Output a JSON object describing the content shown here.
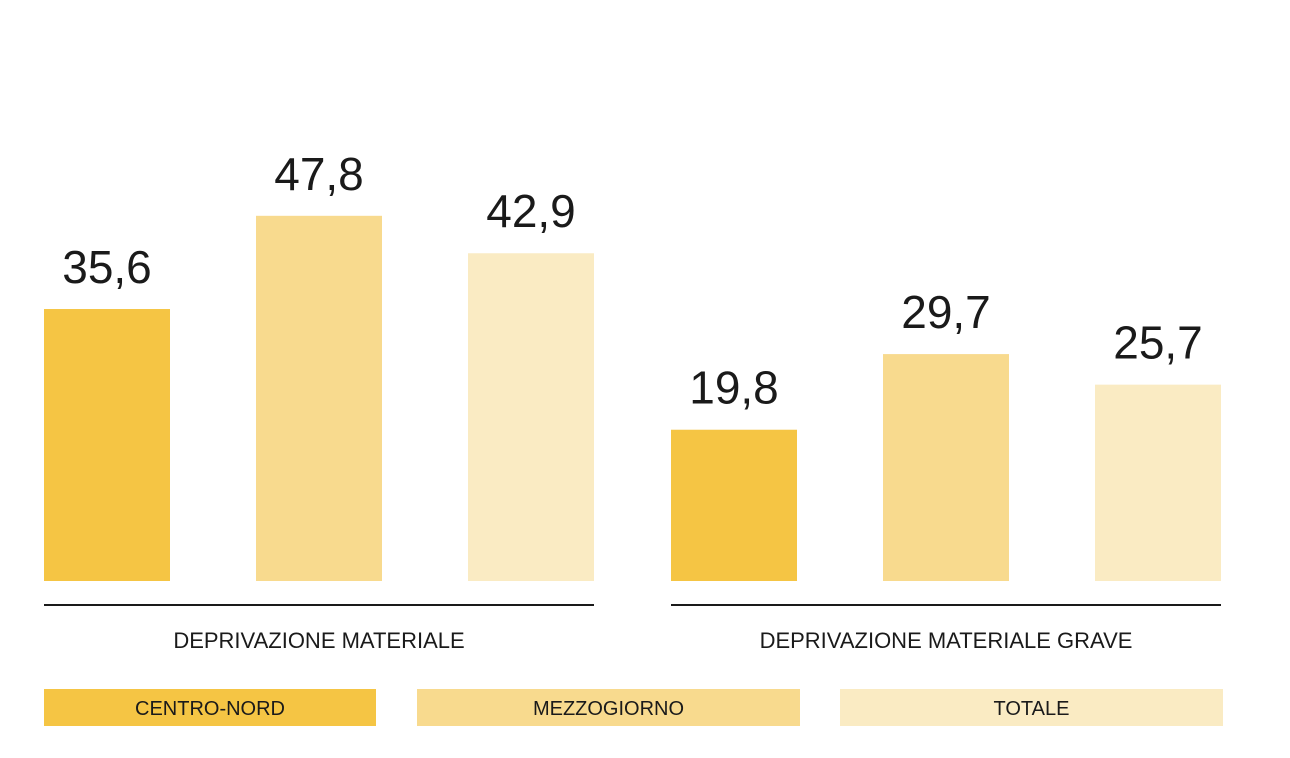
{
  "chart_data": {
    "type": "bar",
    "categories": [
      "DEPRIVAZIONE MATERIALE",
      "DEPRIVAZIONE MATERIALE GRAVE"
    ],
    "series": [
      {
        "name": "CENTRO-NORD",
        "values": [
          35.6,
          19.8
        ],
        "labels": [
          "35,6",
          "19,8"
        ],
        "color": "#F5C544"
      },
      {
        "name": "MEZZOGIORNO",
        "values": [
          47.8,
          29.7
        ],
        "labels": [
          "47,8",
          "29,7"
        ],
        "color": "#F8DA8E"
      },
      {
        "name": "TOTALE",
        "values": [
          42.9,
          25.7
        ],
        "labels": [
          "42,9",
          "25,7"
        ],
        "color": "#FAEBC3"
      }
    ],
    "ylim": [
      0,
      50
    ],
    "grid": false,
    "legend": "bottom"
  }
}
